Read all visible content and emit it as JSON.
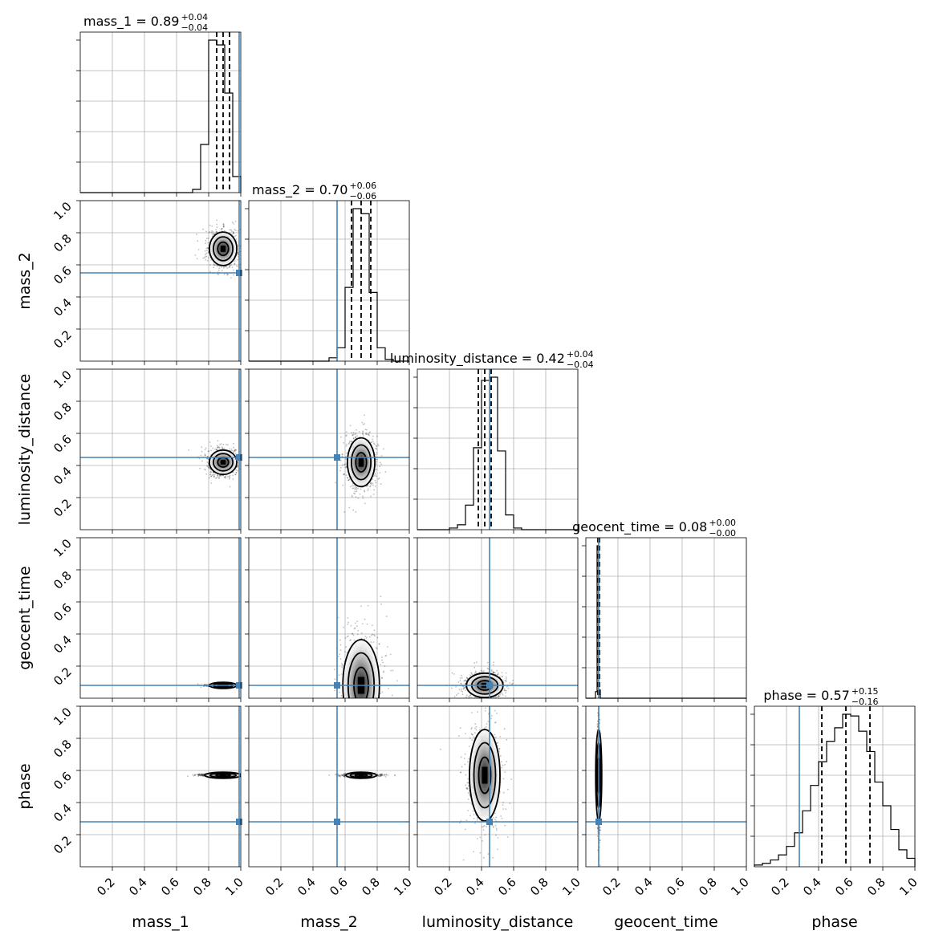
{
  "chart_data": {
    "type": "corner",
    "parameters": [
      "mass_1",
      "mass_2",
      "luminosity_distance",
      "geocent_time",
      "phase"
    ],
    "axis_range": [
      0,
      1
    ],
    "ticks": [
      "0.2",
      "0.4",
      "0.6",
      "0.8",
      "1.0"
    ],
    "grid": true,
    "truth_color": "#4682b4",
    "truths": [
      0.99,
      0.55,
      0.45,
      0.08,
      0.28
    ],
    "titles": [
      {
        "base": "mass_1 = 0.89",
        "plus": "+0.04",
        "minus": "−0.04"
      },
      {
        "base": "mass_2 = 0.70",
        "plus": "+0.06",
        "minus": "−0.06"
      },
      {
        "base": "luminosity_distance = 0.42",
        "plus": "+0.04",
        "minus": "−0.04"
      },
      {
        "base": "geocent_time = 0.08",
        "plus": "+0.00",
        "minus": "−0.00"
      },
      {
        "base": "phase = 0.57",
        "plus": "+0.15",
        "minus": "−0.16"
      }
    ],
    "medians": [
      0.89,
      0.7,
      0.42,
      0.08,
      0.57
    ],
    "err_plus": [
      0.04,
      0.06,
      0.04,
      0.0,
      0.15
    ],
    "err_minus": [
      0.04,
      0.06,
      0.04,
      0.0,
      0.16
    ],
    "quantiles": [
      [
        0.85,
        0.89,
        0.93
      ],
      [
        0.64,
        0.7,
        0.76
      ],
      [
        0.38,
        0.42,
        0.46
      ],
      [
        0.075,
        0.08,
        0.085
      ],
      [
        0.42,
        0.57,
        0.72
      ]
    ],
    "marginal_hist": [
      {
        "edges": [
          0.7,
          0.75,
          0.8,
          0.85,
          0.9,
          0.95,
          1.0
        ],
        "counts": [
          0.02,
          0.3,
          0.95,
          0.92,
          0.62,
          0.1
        ]
      },
      {
        "edges": [
          0.5,
          0.55,
          0.6,
          0.65,
          0.7,
          0.75,
          0.8,
          0.85,
          0.9
        ],
        "counts": [
          0.02,
          0.08,
          0.44,
          0.91,
          0.88,
          0.41,
          0.08,
          0.01
        ]
      },
      {
        "edges": [
          0.2,
          0.25,
          0.3,
          0.35,
          0.4,
          0.45,
          0.5,
          0.55,
          0.6,
          0.65
        ],
        "counts": [
          0.01,
          0.03,
          0.15,
          0.5,
          0.91,
          0.93,
          0.48,
          0.09,
          0.01
        ]
      },
      {
        "edges": [
          0.06,
          0.07,
          0.08,
          0.09
        ],
        "counts": [
          0.04,
          0.93,
          0.05
        ]
      },
      {
        "edges": [
          0.0,
          0.05,
          0.1,
          0.15,
          0.2,
          0.25,
          0.3,
          0.35,
          0.4,
          0.45,
          0.5,
          0.55,
          0.6,
          0.65,
          0.7,
          0.75,
          0.8,
          0.85,
          0.9,
          0.95,
          1.0
        ],
        "counts": [
          0.01,
          0.02,
          0.04,
          0.07,
          0.12,
          0.2,
          0.33,
          0.48,
          0.62,
          0.74,
          0.82,
          0.9,
          0.89,
          0.8,
          0.68,
          0.5,
          0.36,
          0.22,
          0.1,
          0.05
        ]
      }
    ],
    "joint_spread": [
      [
        0.045,
        0.055
      ],
      [
        0.045,
        0.04
      ],
      [
        0.045,
        0.08
      ],
      [
        0.045,
        0.004
      ],
      [
        0.06,
        0.15
      ],
      [
        0.06,
        0.04
      ],
      [
        0.06,
        0.004
      ],
      [
        0.05,
        0.004
      ],
      [
        0.05,
        0.15
      ],
      [
        0.004,
        0.15
      ]
    ]
  }
}
